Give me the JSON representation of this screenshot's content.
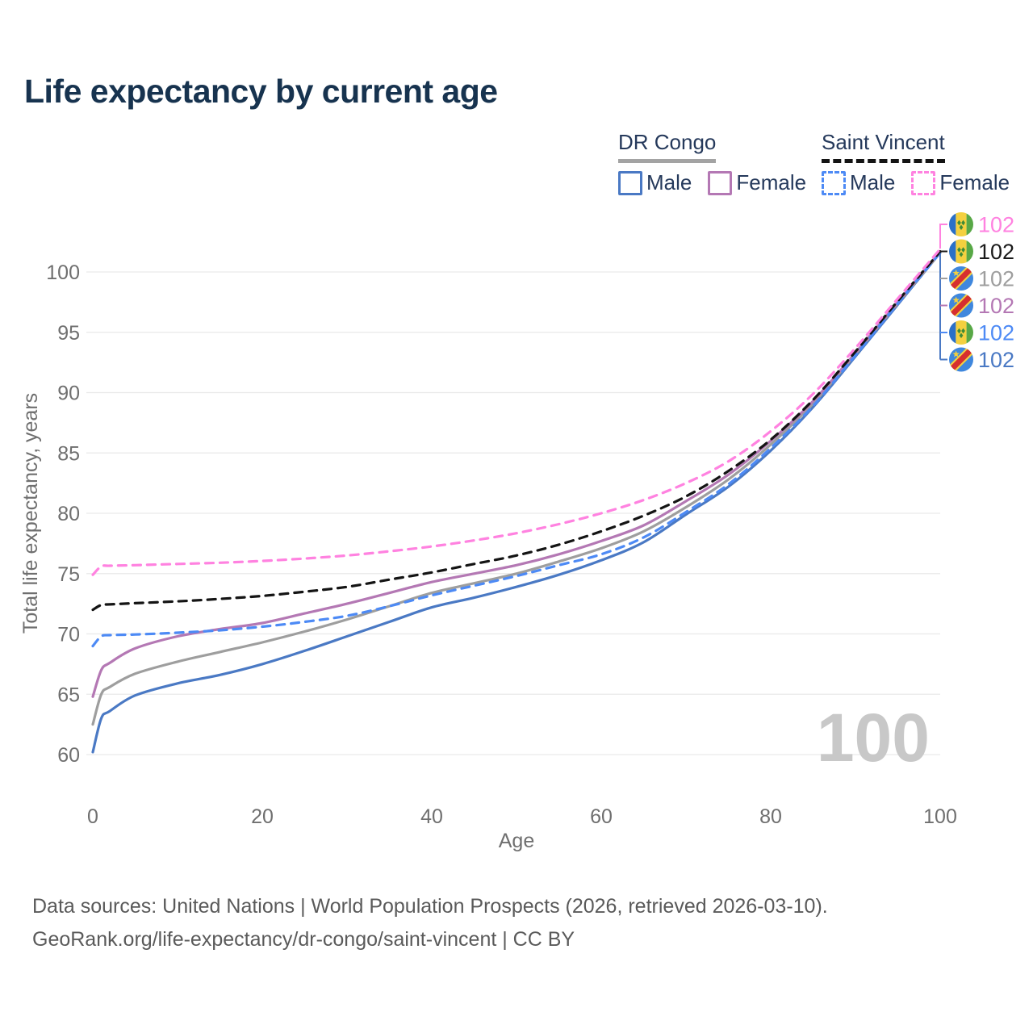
{
  "title": "Life expectancy by current age",
  "legend": {
    "groups": [
      {
        "name": "DR Congo",
        "line_style": "solid",
        "underline_color": "#a3a3a3",
        "items": [
          {
            "label": "Male",
            "color": "#4a79c4"
          },
          {
            "label": "Female",
            "color": "#b478b4"
          }
        ]
      },
      {
        "name": "Saint Vincent",
        "line_style": "dashed",
        "underline_color": "#141414",
        "items": [
          {
            "label": "Male",
            "color": "#4d8af5"
          },
          {
            "label": "Female",
            "color": "#ff82e0"
          }
        ]
      }
    ]
  },
  "chart_data": {
    "type": "line",
    "title": "Life expectancy by current age",
    "xlabel": "Age",
    "ylabel": "Total life expectancy, years",
    "xlim": [
      0,
      100
    ],
    "ylim": [
      58.5,
      103
    ],
    "xticks": [
      0,
      20,
      40,
      60,
      80,
      100
    ],
    "yticks": [
      60,
      65,
      70,
      75,
      80,
      85,
      90,
      95,
      100
    ],
    "grid": "horizontal",
    "legend_position": "top-right",
    "x": [
      0,
      1,
      2,
      5,
      10,
      15,
      20,
      25,
      30,
      35,
      40,
      45,
      50,
      55,
      60,
      65,
      70,
      75,
      80,
      85,
      90,
      95,
      100
    ],
    "series": [
      {
        "name": "DR Congo Male",
        "country": "DR Congo",
        "sex": "Male",
        "color": "#4a79c4",
        "line_style": "solid",
        "values": [
          60.2,
          63.0,
          63.6,
          64.9,
          65.9,
          66.6,
          67.5,
          68.6,
          69.8,
          71.0,
          72.2,
          73.0,
          73.9,
          74.9,
          76.1,
          77.6,
          79.9,
          82.2,
          85.2,
          88.8,
          93.0,
          97.3,
          101.6
        ]
      },
      {
        "name": "DR Congo Both sexes",
        "country": "DR Congo",
        "sex": "Both",
        "color": "#9e9e9e",
        "line_style": "solid",
        "values": [
          62.5,
          65.0,
          65.6,
          66.7,
          67.7,
          68.5,
          69.3,
          70.2,
          71.2,
          72.3,
          73.4,
          74.2,
          75.0,
          76.0,
          77.1,
          78.5,
          80.5,
          82.8,
          85.7,
          89.1,
          93.2,
          97.4,
          101.6
        ]
      },
      {
        "name": "DR Congo Female",
        "country": "DR Congo",
        "sex": "Female",
        "color": "#b478b4",
        "line_style": "solid",
        "values": [
          64.8,
          67.0,
          67.6,
          68.8,
          69.8,
          70.4,
          70.9,
          71.7,
          72.5,
          73.4,
          74.3,
          75.0,
          75.7,
          76.6,
          77.7,
          79.0,
          81.0,
          83.2,
          86.0,
          89.3,
          93.3,
          97.5,
          101.7
        ]
      },
      {
        "name": "Saint Vincent Male",
        "country": "Saint Vincent",
        "sex": "Male",
        "color": "#4d8af5",
        "line_style": "dashed",
        "values": [
          69.0,
          69.8,
          69.9,
          69.95,
          70.1,
          70.3,
          70.6,
          71.0,
          71.5,
          72.3,
          73.2,
          74.0,
          74.8,
          75.7,
          76.6,
          78.0,
          80.1,
          82.4,
          85.4,
          88.9,
          93.1,
          97.4,
          101.6
        ]
      },
      {
        "name": "Saint Vincent Both sexes",
        "country": "Saint Vincent",
        "sex": "Both",
        "color": "#141414",
        "line_style": "dashed",
        "values": [
          72.0,
          72.4,
          72.45,
          72.55,
          72.7,
          72.9,
          73.15,
          73.5,
          73.9,
          74.5,
          75.1,
          75.8,
          76.5,
          77.4,
          78.5,
          79.8,
          81.4,
          83.5,
          86.1,
          89.4,
          93.4,
          97.6,
          101.7
        ]
      },
      {
        "name": "Saint Vincent Female",
        "country": "Saint Vincent",
        "sex": "Female",
        "color": "#ff82e0",
        "line_style": "dashed",
        "values": [
          74.9,
          75.6,
          75.65,
          75.7,
          75.8,
          75.9,
          76.05,
          76.25,
          76.5,
          76.85,
          77.25,
          77.75,
          78.35,
          79.1,
          80.0,
          81.1,
          82.5,
          84.3,
          86.8,
          89.9,
          93.7,
          97.8,
          101.9
        ]
      }
    ],
    "end_labels": [
      {
        "flag": "saint-vincent",
        "value": "102",
        "color": "#ff82e0",
        "series": "Saint Vincent Female"
      },
      {
        "flag": "saint-vincent",
        "value": "102",
        "color": "#1a1a1a",
        "series": "Saint Vincent Both sexes"
      },
      {
        "flag": "dr-congo",
        "value": "102",
        "color": "#9e9e9e",
        "series": "DR Congo Both sexes"
      },
      {
        "flag": "dr-congo",
        "value": "102",
        "color": "#b478b4",
        "series": "DR Congo Female"
      },
      {
        "flag": "saint-vincent",
        "value": "102",
        "color": "#4d8af5",
        "series": "Saint Vincent Male"
      },
      {
        "flag": "dr-congo",
        "value": "102",
        "color": "#4a79c4",
        "series": "DR Congo Male"
      }
    ],
    "watermark": "100"
  },
  "colors": {
    "title": "#17334f",
    "axis_text": "#6f6f6f",
    "gridline": "#e9e9e9",
    "watermark": "#c8c8c8",
    "footer_text": "#5a5a5a"
  },
  "footer": {
    "line1": "Data sources: United Nations | World Population Prospects (2026, retrieved 2026-03-10).",
    "line2": "GeoRank.org/life-expectancy/dr-congo/saint-vincent | CC BY"
  }
}
